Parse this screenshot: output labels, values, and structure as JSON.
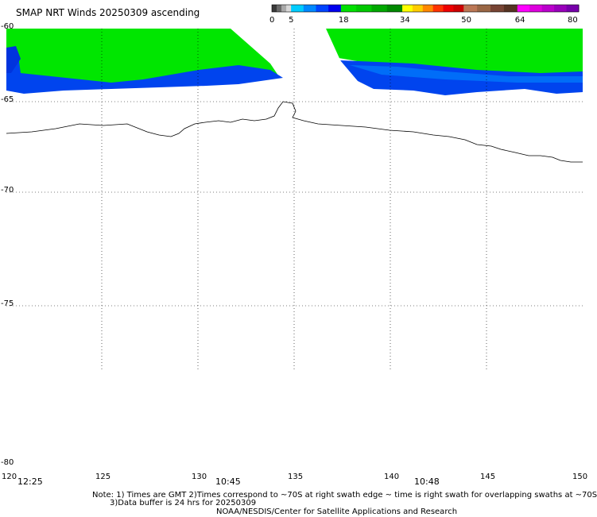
{
  "title": "SMAP NRT Winds 20250309 ascending",
  "colorbar": {
    "labels": [
      "0",
      "5",
      "18",
      "34",
      "50",
      "64",
      "80"
    ],
    "segments": [
      {
        "from": 0,
        "to": 5,
        "colors": [
          "#3a3a3a",
          "#6a6a6a",
          "#a8a8a8",
          "#d8d8d8"
        ]
      },
      {
        "from": 5,
        "to": 18,
        "colors": [
          "#00ccff",
          "#0088ff",
          "#0044ff",
          "#0000ee"
        ]
      },
      {
        "from": 18,
        "to": 34,
        "colors": [
          "#00e000",
          "#00c800",
          "#00a800",
          "#008800"
        ]
      },
      {
        "from": 34,
        "to": 50,
        "colors": [
          "#ffff00",
          "#ffcc00",
          "#ff8800",
          "#ff3300",
          "#ee0000",
          "#cc0000"
        ]
      },
      {
        "from": 50,
        "to": 64,
        "colors": [
          "#bb7755",
          "#996644",
          "#774433",
          "#553322"
        ]
      },
      {
        "from": 64,
        "to": 80,
        "colors": [
          "#ff00ff",
          "#dd00dd",
          "#bb00cc",
          "#9900bb",
          "#7700aa"
        ]
      }
    ]
  },
  "axes": {
    "lat_labels": [
      "-60",
      "-65",
      "-70",
      "-75",
      "-80"
    ],
    "lon_labels": [
      "120",
      "125",
      "130",
      "135",
      "140",
      "145",
      "150"
    ]
  },
  "times": [
    "12:25",
    "10:45",
    "10:48"
  ],
  "notes": [
    "Note: 1) Times are GMT 2)Times correspond to ~70S at right swath edge ~ time is right swath for overlapping swaths at ~70S",
    "3)Data buffer is 24 hrs for 20250309",
    "NOAA/NESDIS/Center for Satellite Applications and Research"
  ],
  "colors": {
    "green": "#00e600",
    "blue_dark": "#0033ee",
    "blue_light": "#0077ff"
  }
}
